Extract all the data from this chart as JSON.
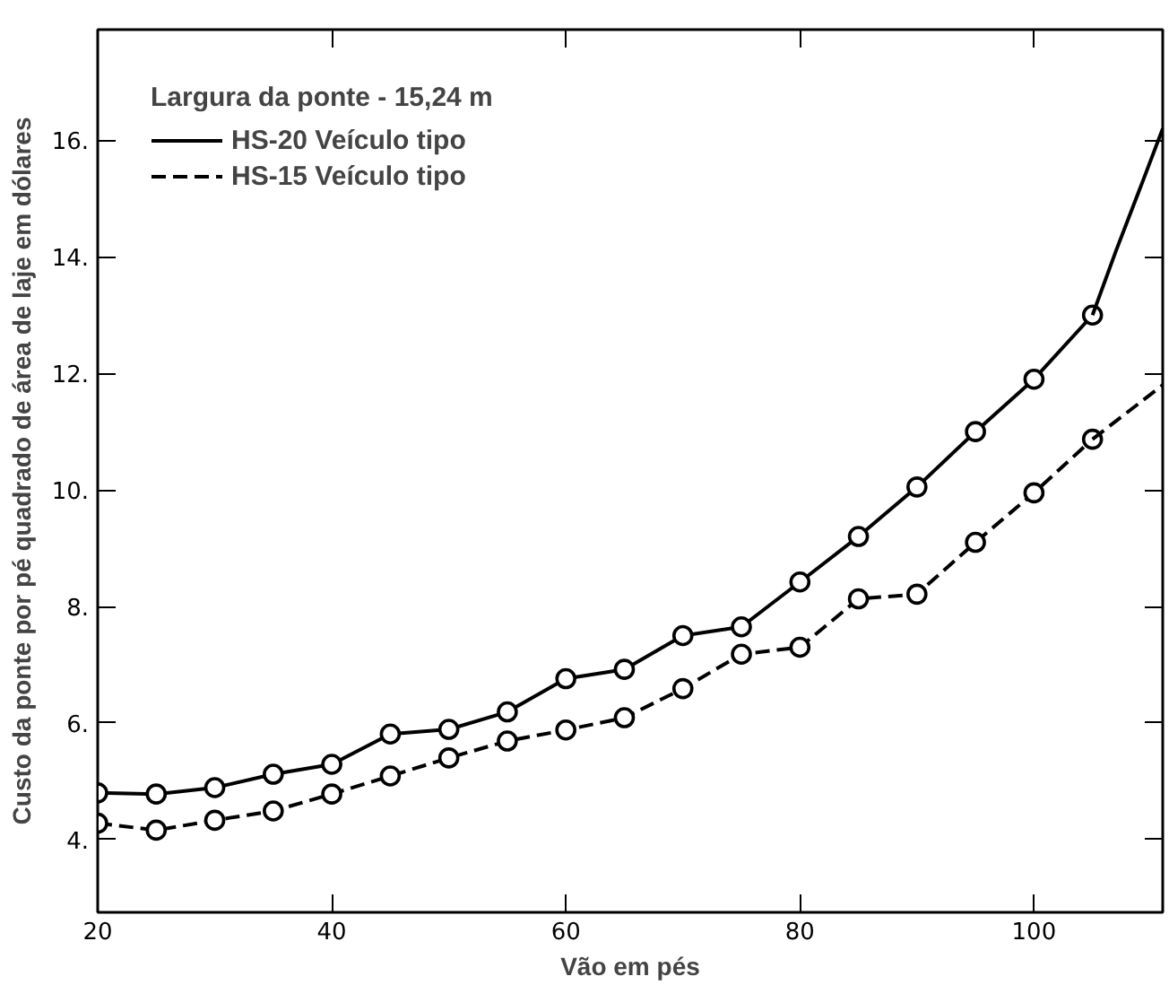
{
  "chart_data": {
    "type": "line",
    "xlabel": "Vão em pés",
    "ylabel": "Custo da ponte por pé quadrado de área de laje em dólares",
    "legend_title": "Largura da ponte - 15,24 m",
    "xlim": [
      20,
      111
    ],
    "ylim": [
      2.75,
      17.9
    ],
    "xticks": [
      20,
      40,
      60,
      80,
      100
    ],
    "yticks": [
      {
        "value": 4,
        "label": "4."
      },
      {
        "value": 6,
        "label": "6."
      },
      {
        "value": 8,
        "label": "8."
      },
      {
        "value": 10,
        "label": "10."
      },
      {
        "value": 12,
        "label": "12."
      },
      {
        "value": 14,
        "label": "14."
      },
      {
        "value": 16,
        "label": "16."
      }
    ],
    "grid": false,
    "legend": "top left",
    "marker": "circle",
    "series": [
      {
        "name": "HS-20 Veículo tipo",
        "color": "#000000",
        "line_style": "solid",
        "x": [
          20,
          25,
          30,
          35,
          40,
          45,
          50,
          55,
          60,
          65,
          70,
          75,
          80,
          85,
          90,
          95,
          100,
          105
        ],
        "values": [
          4.8,
          4.78,
          4.89,
          5.12,
          5.29,
          5.81,
          5.89,
          6.19,
          6.76,
          6.92,
          7.5,
          7.65,
          8.42,
          9.2,
          10.05,
          11.0,
          11.9,
          13.0
        ]
      },
      {
        "name": "HS-15 Veículo tipo",
        "color": "#000000",
        "line_style": "dashed",
        "x": [
          20,
          25,
          30,
          35,
          40,
          45,
          50,
          55,
          60,
          65,
          70,
          75,
          80,
          85,
          90,
          95,
          100,
          105
        ],
        "values": [
          4.28,
          4.16,
          4.33,
          4.49,
          4.78,
          5.09,
          5.4,
          5.69,
          5.88,
          6.09,
          6.59,
          7.18,
          7.3,
          8.13,
          8.21,
          9.1,
          9.95,
          10.87
        ]
      },
      {
        "color": "#000000",
        "line_style": "solid",
        "marker": "none",
        "x": [
          105,
          107,
          109.3,
          111
        ],
        "values": [
          13.0,
          14.1,
          15.3,
          16.2
        ]
      },
      {
        "color": "#000000",
        "line_style": "dashed",
        "marker": "none",
        "x": [
          105,
          111
        ],
        "values": [
          10.87,
          11.8
        ]
      }
    ]
  }
}
